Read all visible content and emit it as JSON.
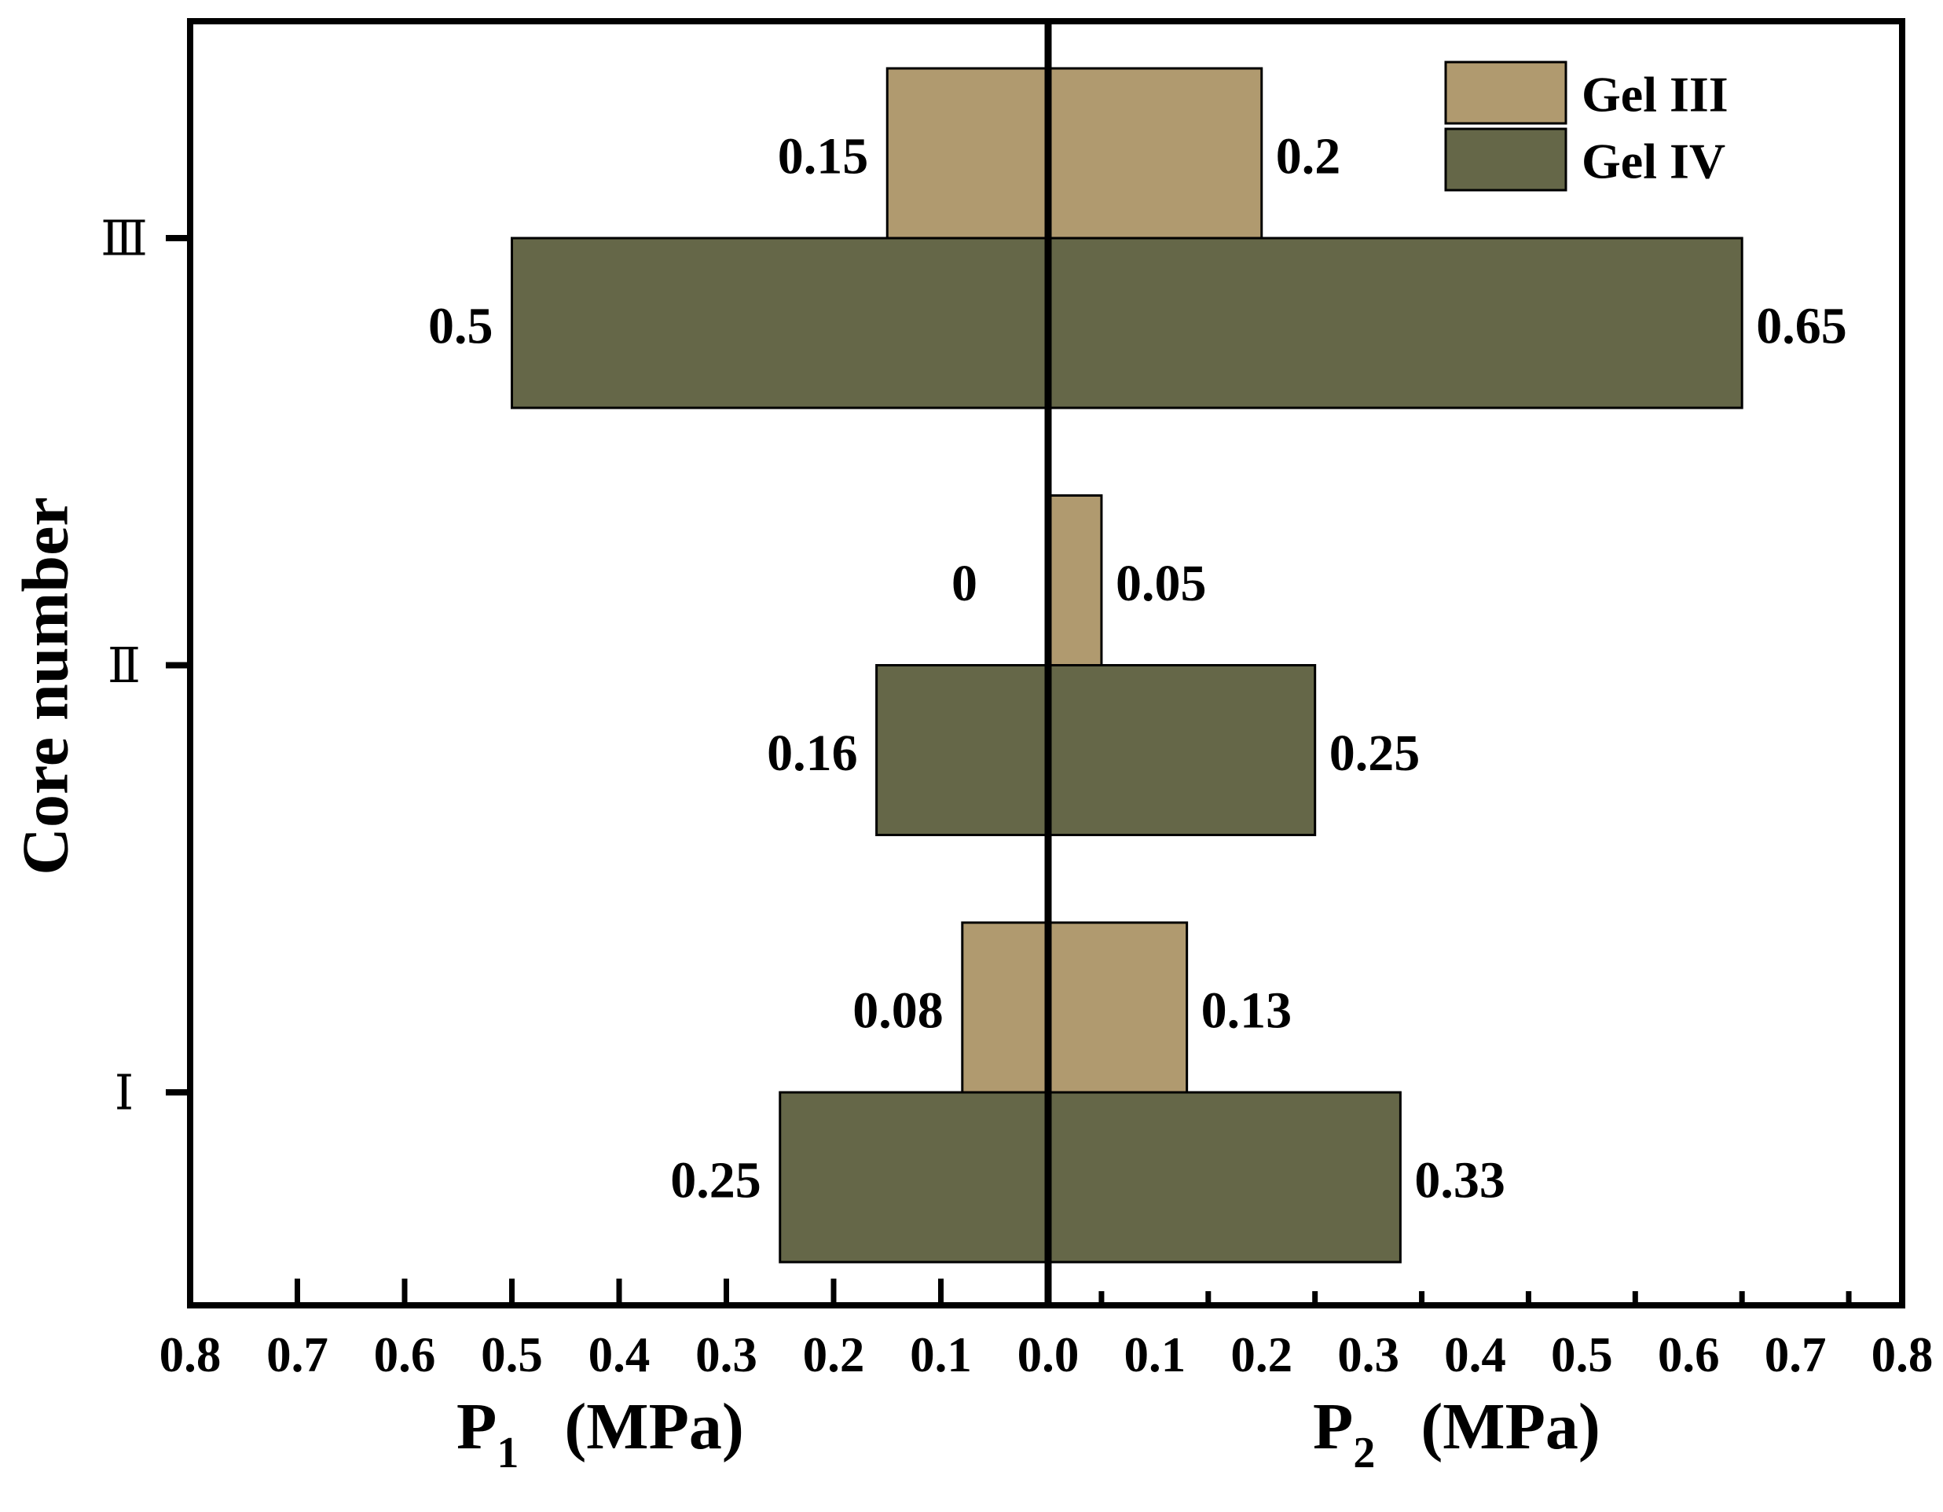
{
  "chart_data": {
    "type": "bar",
    "categories": [
      "Ⅰ",
      "Ⅱ",
      "Ⅲ"
    ],
    "series": [
      {
        "name": "Gel III",
        "color": "#B09A6F",
        "p1": [
          0.08,
          0,
          0.15
        ],
        "p2": [
          0.13,
          0.05,
          0.2
        ]
      },
      {
        "name": "Gel IV",
        "color": "#656748",
        "p1": [
          0.25,
          0.16,
          0.5
        ],
        "p2": [
          0.33,
          0.25,
          0.65
        ]
      }
    ],
    "ylabel": "Core number",
    "xlabel_left": {
      "symbol": "P",
      "subscript": "1",
      "unit": "(MPa)"
    },
    "xlabel_right": {
      "symbol": "P",
      "subscript": "2",
      "unit": "(MPa)"
    },
    "xlim_left": [
      0,
      0.8
    ],
    "xlim_right": [
      0,
      0.8
    ],
    "x_ticks": {
      "values": [
        -0.8,
        -0.7,
        -0.6,
        -0.5,
        -0.4,
        -0.3,
        -0.2,
        -0.1,
        0,
        0.1,
        0.2,
        0.3,
        0.4,
        0.5,
        0.6,
        0.7,
        0.8
      ],
      "labels": [
        "0.8",
        "0.7",
        "0.6",
        "0.5",
        "0.4",
        "0.3",
        "0.2",
        "0.1",
        "0.0",
        "0.1",
        "0.2",
        "0.3",
        "0.4",
        "0.5",
        "0.6",
        "0.7",
        "0.8"
      ]
    },
    "x_tick_marks": [
      -0.7,
      -0.6,
      -0.5,
      -0.4,
      -0.3,
      -0.2,
      -0.1,
      0.05,
      0.15,
      0.25,
      0.35,
      0.45,
      0.55,
      0.65,
      0.75
    ],
    "grid": false,
    "legend": {
      "position": "top-right"
    }
  }
}
